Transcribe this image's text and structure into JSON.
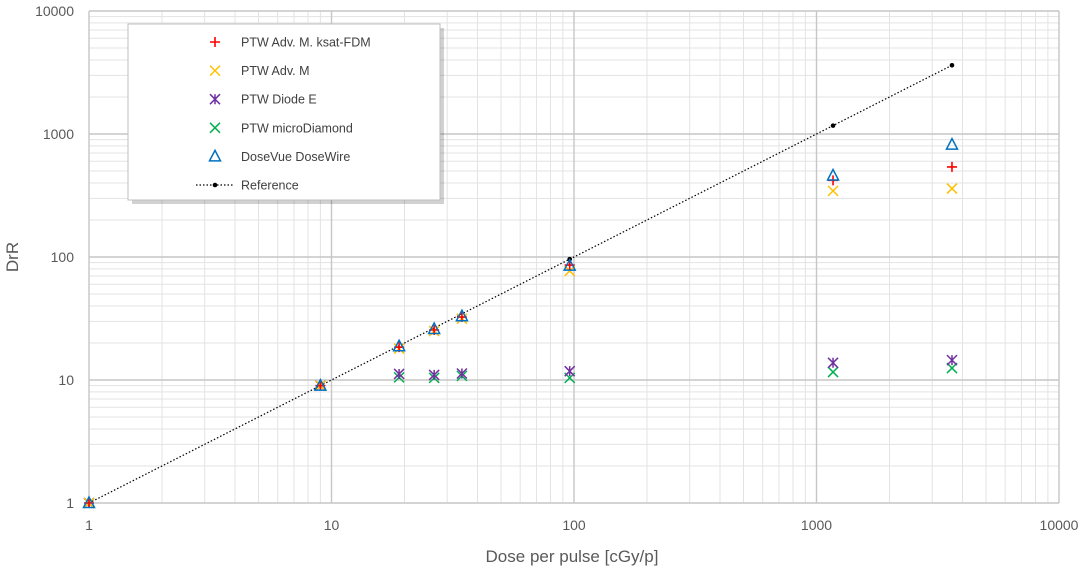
{
  "chart_data": {
    "type": "scatter",
    "title": "",
    "xlabel": "Dose per pulse [cGy/p]",
    "ylabel": "DrR",
    "xscale": "log",
    "yscale": "log",
    "xlim": [
      1,
      10000
    ],
    "ylim": [
      1,
      10000
    ],
    "x_ticks": [
      "1",
      "10",
      "100",
      "1000",
      "10000"
    ],
    "y_ticks": [
      "1",
      "10",
      "100",
      "1000",
      "10000"
    ],
    "grid": true,
    "legend_position": "top-left",
    "series": [
      {
        "name": "PTW Adv. M. ksat-FDM",
        "marker": "plus",
        "color": "#ff0000",
        "points": [
          [
            1,
            1
          ],
          [
            9,
            9
          ],
          [
            19,
            18.5
          ],
          [
            26.5,
            25.5
          ],
          [
            34.5,
            32.5
          ],
          [
            96,
            86
          ],
          [
            1170,
            420
          ],
          [
            3620,
            540
          ]
        ]
      },
      {
        "name": "PTW Adv. M",
        "marker": "x",
        "color": "#ffc000",
        "points": [
          [
            1,
            1
          ],
          [
            9,
            9
          ],
          [
            19,
            18
          ],
          [
            26.5,
            25
          ],
          [
            34.5,
            31.5
          ],
          [
            96,
            77
          ],
          [
            1170,
            345
          ],
          [
            3620,
            360
          ]
        ]
      },
      {
        "name": "PTW Diode E",
        "marker": "star",
        "color": "#7030a0",
        "points": [
          [
            1,
            1
          ],
          [
            9,
            9
          ],
          [
            19,
            11.2
          ],
          [
            26.5,
            11
          ],
          [
            34.5,
            11.3
          ],
          [
            96,
            11.8
          ],
          [
            1170,
            13.8
          ],
          [
            3620,
            14.5
          ]
        ]
      },
      {
        "name": "PTW microDiamond",
        "marker": "x",
        "color": "#00b050",
        "points": [
          [
            1,
            1
          ],
          [
            9,
            9
          ],
          [
            19,
            10.5
          ],
          [
            26.5,
            10.4
          ],
          [
            34.5,
            10.8
          ],
          [
            96,
            10.4
          ],
          [
            1170,
            11.6
          ],
          [
            3620,
            12.5
          ]
        ]
      },
      {
        "name": "DoseVue DoseWire",
        "marker": "triangle",
        "color": "#0070c0",
        "points": [
          [
            1,
            1
          ],
          [
            9,
            9
          ],
          [
            19,
            18.8
          ],
          [
            26.5,
            26
          ],
          [
            34.5,
            33
          ],
          [
            96,
            85
          ],
          [
            1170,
            460
          ],
          [
            3620,
            820
          ]
        ]
      },
      {
        "name": "Reference",
        "marker": "dot-line",
        "color": "#000000",
        "points": [
          [
            1,
            1
          ],
          [
            9,
            9
          ],
          [
            96,
            96
          ],
          [
            1170,
            1170
          ],
          [
            3620,
            3620
          ]
        ]
      }
    ]
  }
}
